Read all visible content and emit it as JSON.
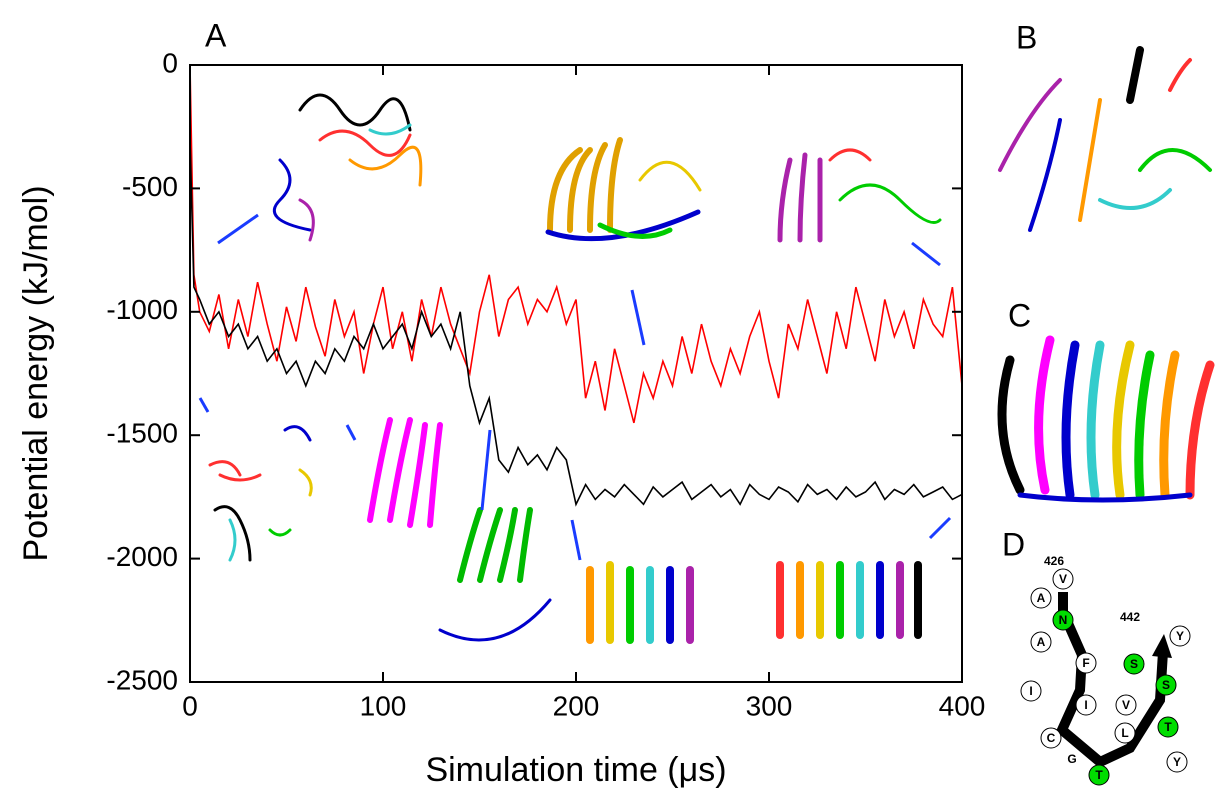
{
  "chart_data": {
    "type": "line",
    "xlabel": "Simulation time (μs)",
    "ylabel": "Potential energy (kJ/mol)",
    "xlim": [
      0,
      400
    ],
    "xticks": [
      0,
      100,
      200,
      300,
      400
    ],
    "ylim": [
      -2500,
      0
    ],
    "yticks": [
      0,
      -500,
      -1000,
      -1500,
      -2000,
      -2500
    ],
    "x": [
      0,
      2,
      5,
      10,
      15,
      20,
      25,
      30,
      35,
      40,
      45,
      50,
      55,
      60,
      65,
      70,
      75,
      80,
      85,
      90,
      95,
      100,
      105,
      110,
      115,
      120,
      125,
      130,
      135,
      140,
      145,
      150,
      155,
      160,
      165,
      170,
      175,
      180,
      185,
      190,
      195,
      200,
      205,
      210,
      215,
      220,
      225,
      230,
      235,
      240,
      245,
      250,
      255,
      260,
      265,
      270,
      275,
      280,
      285,
      290,
      295,
      300,
      305,
      310,
      315,
      320,
      325,
      330,
      335,
      340,
      345,
      350,
      355,
      360,
      365,
      370,
      375,
      380,
      385,
      390,
      395,
      400
    ],
    "series": [
      {
        "color": "#ff0000",
        "values": [
          0,
          -850,
          -1000,
          -1080,
          -930,
          -1150,
          -950,
          -1100,
          -880,
          -1050,
          -1200,
          -980,
          -1120,
          -900,
          -1060,
          -1180,
          -950,
          -1100,
          -1000,
          -1250,
          -1050,
          -900,
          -1150,
          -1000,
          -1200,
          -950,
          -1100,
          -900,
          -1050,
          -1150,
          -1250,
          -1000,
          -850,
          -1100,
          -950,
          -900,
          -1050,
          -950,
          -1000,
          -900,
          -1050,
          -950,
          -1350,
          -1200,
          -1400,
          -1150,
          -1300,
          -1450,
          -1250,
          -1350,
          -1200,
          -1300,
          -1100,
          -1250,
          -1050,
          -1200,
          -1300,
          -1150,
          -1250,
          -1100,
          -1000,
          -1200,
          -1350,
          -1050,
          -1150,
          -950,
          -1100,
          -1250,
          -1000,
          -1150,
          -900,
          -1050,
          -1200,
          -950,
          -1100,
          -1000,
          -1150,
          -950,
          -1050,
          -1100,
          -900,
          -1300
        ]
      },
      {
        "color": "#000000",
        "values": [
          -300,
          -900,
          -950,
          -1050,
          -1000,
          -1100,
          -1050,
          -1150,
          -1100,
          -1200,
          -1150,
          -1250,
          -1200,
          -1300,
          -1200,
          -1250,
          -1150,
          -1200,
          -1100,
          -1150,
          -1050,
          -1150,
          -1100,
          -1050,
          -1150,
          -1000,
          -1100,
          -1050,
          -1150,
          -1000,
          -1300,
          -1450,
          -1350,
          -1600,
          -1650,
          -1550,
          -1620,
          -1580,
          -1640,
          -1550,
          -1600,
          -1780,
          -1700,
          -1760,
          -1720,
          -1750,
          -1700,
          -1740,
          -1780,
          -1710,
          -1750,
          -1720,
          -1690,
          -1760,
          -1730,
          -1700,
          -1750,
          -1720,
          -1780,
          -1700,
          -1740,
          -1760,
          -1710,
          -1730,
          -1770,
          -1700,
          -1740,
          -1720,
          -1760,
          -1710,
          -1750,
          -1730,
          -1690,
          -1760,
          -1720,
          -1740,
          -1700,
          -1750,
          -1730,
          -1710,
          -1760,
          -1740
        ]
      }
    ]
  },
  "panel_labels": [
    "A",
    "B",
    "C",
    "D"
  ],
  "diagram": {
    "start": "426",
    "end": "442",
    "turn": "G",
    "residues": [
      {
        "label": "V",
        "highlighted": false
      },
      {
        "label": "A",
        "highlighted": false
      },
      {
        "label": "N",
        "highlighted": true
      },
      {
        "label": "A",
        "highlighted": false
      },
      {
        "label": "F",
        "highlighted": false
      },
      {
        "label": "I",
        "highlighted": false
      },
      {
        "label": "I",
        "highlighted": false
      },
      {
        "label": "C",
        "highlighted": false
      },
      {
        "label": "T",
        "highlighted": true
      },
      {
        "label": "Y",
        "highlighted": false
      },
      {
        "label": "L",
        "highlighted": false
      },
      {
        "label": "T",
        "highlighted": true
      },
      {
        "label": "V",
        "highlighted": false
      },
      {
        "label": "S",
        "highlighted": true
      },
      {
        "label": "S",
        "highlighted": true
      },
      {
        "label": "Y",
        "highlighted": false
      }
    ]
  }
}
